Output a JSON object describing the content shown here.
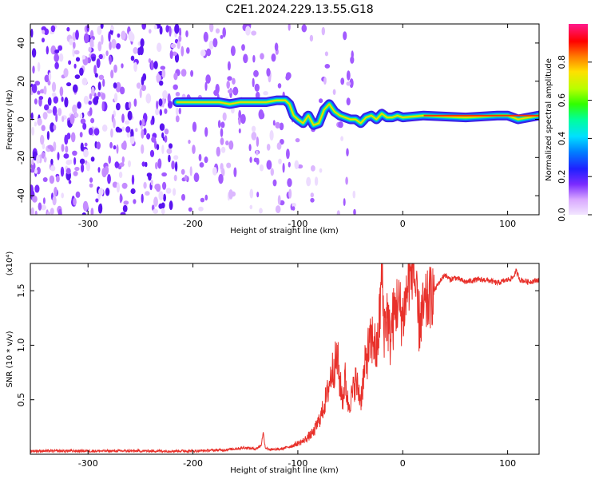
{
  "title": "C2E1.2024.229.13.55.G18",
  "colors": {
    "snr_line": "#e8302a",
    "frame": "#000000",
    "colormap": [
      "#ffffff",
      "#e6c8ff",
      "#8a2be2",
      "#3c1ee6",
      "#0050ff",
      "#00c8ff",
      "#00ff80",
      "#64ff00",
      "#ffe600",
      "#ff6400",
      "#ff0000",
      "#ff1a8c"
    ]
  },
  "chart_data": [
    {
      "type": "heatmap",
      "name": "spectrogram",
      "xlabel": "Height of straight line (km)",
      "ylabel": "Frequency (Hz)",
      "xlim": [
        -355,
        130
      ],
      "ylim": [
        -50,
        50
      ],
      "xticks": [
        -300,
        -200,
        -100,
        0,
        100
      ],
      "yticks": [
        -40,
        -20,
        0,
        20,
        40
      ],
      "grid": false,
      "colorbar": {
        "label": "Normalized spectral amplitude",
        "range": [
          0,
          1
        ],
        "ticks": [
          0.0,
          0.2,
          0.4,
          0.6,
          0.8
        ]
      },
      "ridge": {
        "x": [
          -215,
          -200,
          -185,
          -175,
          -165,
          -155,
          -145,
          -130,
          -120,
          -112,
          -108,
          -104,
          -100,
          -95,
          -90,
          -85,
          -80,
          -75,
          -70,
          -65,
          -60,
          -55,
          -50,
          -45,
          -40,
          -35,
          -30,
          -25,
          -20,
          -15,
          -10,
          -5,
          0,
          20,
          60,
          90,
          100,
          110,
          130
        ],
        "y": [
          9,
          9,
          9,
          9,
          8,
          9,
          9,
          9,
          10,
          10,
          8,
          2,
          0,
          -2,
          2,
          -3,
          -2,
          5,
          8,
          4,
          2,
          1,
          0,
          0,
          -2,
          1,
          2,
          0,
          3,
          1,
          1,
          2,
          1,
          2,
          1,
          2,
          2,
          0,
          2
        ]
      }
    },
    {
      "type": "line",
      "name": "snr",
      "xlabel": "Height of straight line (km)",
      "ylabel": "SNR (10 * v/v)",
      "multiplier_label": "(x10⁴)",
      "xlim": [
        -355,
        130
      ],
      "ylim": [
        0,
        1.75
      ],
      "xticks": [
        -300,
        -200,
        -100,
        0,
        100
      ],
      "yticks": [
        0.5,
        1.0,
        1.5
      ],
      "grid": false,
      "series": [
        {
          "x": [
            -355,
            -300,
            -250,
            -200,
            -170,
            -160,
            -150,
            -140,
            -135,
            -133,
            -131,
            -125,
            -115,
            -105,
            -95,
            -85,
            -78,
            -72,
            -68,
            -62,
            -60,
            -57,
            -55,
            -52,
            -48,
            -45,
            -40,
            -36,
            -33,
            -28,
            -25,
            -22,
            -20,
            -18,
            -15,
            -12,
            -10,
            -5,
            0,
            5,
            10,
            15,
            20,
            25,
            30,
            35,
            40,
            45,
            50,
            60,
            70,
            80,
            90,
            100,
            105,
            108,
            112,
            120,
            130
          ],
          "y": [
            0.03,
            0.03,
            0.03,
            0.03,
            0.04,
            0.05,
            0.06,
            0.05,
            0.08,
            0.2,
            0.06,
            0.04,
            0.05,
            0.08,
            0.12,
            0.2,
            0.35,
            0.55,
            0.75,
            0.88,
            0.65,
            0.5,
            0.7,
            0.45,
            0.55,
            0.68,
            0.5,
            0.8,
            0.95,
            1.08,
            0.9,
            1.25,
            1.7,
            1.15,
            1.3,
            1.05,
            1.2,
            1.4,
            1.25,
            1.55,
            1.75,
            1.2,
            1.32,
            1.42,
            1.5,
            1.58,
            1.65,
            1.6,
            1.62,
            1.58,
            1.6,
            1.6,
            1.57,
            1.6,
            1.62,
            1.68,
            1.6,
            1.58,
            1.6
          ]
        }
      ]
    }
  ]
}
